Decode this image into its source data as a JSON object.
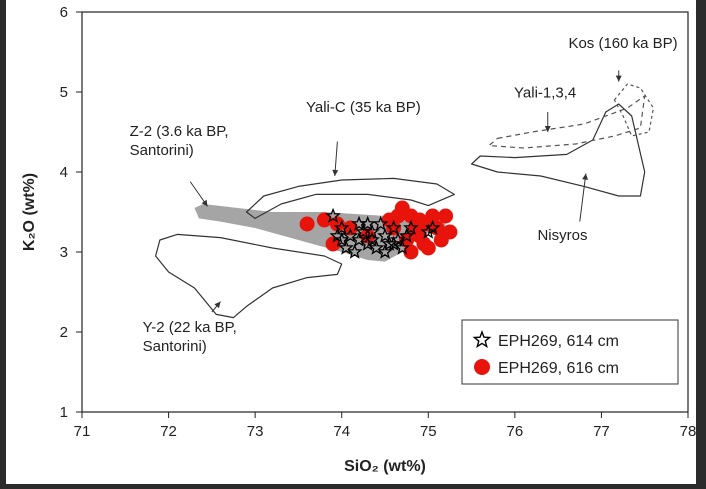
{
  "chart_data": {
    "type": "scatter",
    "xlabel": "SiO₂ (wt%)",
    "ylabel": "K₂O (wt%)",
    "xlim": [
      71,
      78
    ],
    "ylim": [
      1,
      6
    ],
    "xticks": [
      "71",
      "72",
      "73",
      "74",
      "75",
      "76",
      "77",
      "78"
    ],
    "yticks": [
      "1",
      "2",
      "3",
      "4",
      "5",
      "6"
    ],
    "legend_position": "bottom-right",
    "series": [
      {
        "name": "EPH269, 614 cm",
        "marker": "star",
        "color": "#000000",
        "points": [
          [
            73.9,
            3.45
          ],
          [
            74.0,
            3.3
          ],
          [
            74.1,
            3.2
          ],
          [
            74.2,
            3.15
          ],
          [
            74.3,
            3.1
          ],
          [
            74.35,
            3.25
          ],
          [
            74.4,
            3.05
          ],
          [
            74.5,
            3.2
          ],
          [
            74.55,
            3.1
          ],
          [
            74.6,
            3.3
          ],
          [
            74.2,
            3.35
          ],
          [
            74.05,
            3.05
          ],
          [
            74.45,
            3.35
          ],
          [
            74.65,
            3.15
          ],
          [
            74.75,
            3.2
          ],
          [
            74.8,
            3.3
          ],
          [
            74.15,
            3.0
          ],
          [
            74.3,
            3.35
          ],
          [
            74.0,
            3.15
          ],
          [
            74.5,
            3.0
          ],
          [
            74.7,
            3.05
          ],
          [
            74.35,
            3.15
          ],
          [
            75.0,
            3.25
          ],
          [
            75.05,
            3.3
          ],
          [
            74.25,
            3.25
          ],
          [
            73.95,
            3.2
          ],
          [
            74.6,
            3.1
          ]
        ]
      },
      {
        "name": "EPH269, 616 cm",
        "marker": "circle",
        "color": "#e8140c",
        "points": [
          [
            73.6,
            3.35
          ],
          [
            73.8,
            3.4
          ],
          [
            73.95,
            3.35
          ],
          [
            74.7,
            3.55
          ],
          [
            74.8,
            3.45
          ],
          [
            74.9,
            3.4
          ],
          [
            75.0,
            3.35
          ],
          [
            75.1,
            3.3
          ],
          [
            75.2,
            3.45
          ],
          [
            75.25,
            3.25
          ],
          [
            75.15,
            3.15
          ],
          [
            74.9,
            3.2
          ],
          [
            74.95,
            3.1
          ],
          [
            74.85,
            3.3
          ],
          [
            75.05,
            3.45
          ],
          [
            74.6,
            3.3
          ],
          [
            74.75,
            3.15
          ],
          [
            74.55,
            3.4
          ],
          [
            74.65,
            3.45
          ],
          [
            75.0,
            3.05
          ],
          [
            74.8,
            3.0
          ],
          [
            74.1,
            3.3
          ],
          [
            74.3,
            3.2
          ],
          [
            73.9,
            3.1
          ]
        ]
      }
    ],
    "fields": [
      {
        "name": "Z-2",
        "fill": "#a5a5a5",
        "stroke": "none",
        "dash": "",
        "polygon": [
          [
            72.3,
            3.55
          ],
          [
            72.4,
            3.6
          ],
          [
            72.8,
            3.55
          ],
          [
            73.2,
            3.5
          ],
          [
            73.8,
            3.5
          ],
          [
            74.5,
            3.45
          ],
          [
            75.2,
            3.4
          ],
          [
            75.2,
            3.3
          ],
          [
            74.9,
            3.2
          ],
          [
            74.7,
            3.0
          ],
          [
            74.5,
            2.88
          ],
          [
            74.3,
            2.9
          ],
          [
            74.0,
            3.0
          ],
          [
            73.5,
            3.15
          ],
          [
            73.0,
            3.3
          ],
          [
            72.6,
            3.38
          ],
          [
            72.35,
            3.42
          ]
        ]
      },
      {
        "name": "Yali-C",
        "fill": "none",
        "stroke": "#333333",
        "dash": "",
        "polygon": [
          [
            72.9,
            3.5
          ],
          [
            73.1,
            3.7
          ],
          [
            73.5,
            3.82
          ],
          [
            74.0,
            3.9
          ],
          [
            74.6,
            3.92
          ],
          [
            75.1,
            3.85
          ],
          [
            75.3,
            3.72
          ],
          [
            75.0,
            3.58
          ],
          [
            74.8,
            3.65
          ],
          [
            74.3,
            3.72
          ],
          [
            73.7,
            3.72
          ],
          [
            73.3,
            3.6
          ],
          [
            73.0,
            3.42
          ]
        ]
      },
      {
        "name": "Y-2",
        "fill": "none",
        "stroke": "#333333",
        "dash": "",
        "polygon": [
          [
            71.9,
            3.15
          ],
          [
            72.1,
            3.22
          ],
          [
            72.6,
            3.18
          ],
          [
            73.2,
            3.05
          ],
          [
            73.8,
            2.95
          ],
          [
            74.0,
            2.85
          ],
          [
            73.95,
            2.72
          ],
          [
            73.6,
            2.68
          ],
          [
            73.2,
            2.55
          ],
          [
            72.9,
            2.32
          ],
          [
            72.75,
            2.18
          ],
          [
            72.55,
            2.22
          ],
          [
            72.3,
            2.55
          ],
          [
            72.0,
            2.75
          ],
          [
            71.85,
            2.95
          ]
        ]
      },
      {
        "name": "Nisyros",
        "fill": "none",
        "stroke": "#333333",
        "dash": "",
        "polygon": [
          [
            75.5,
            4.1
          ],
          [
            75.8,
            4.0
          ],
          [
            76.3,
            3.95
          ],
          [
            76.8,
            3.82
          ],
          [
            77.2,
            3.7
          ],
          [
            77.45,
            3.7
          ],
          [
            77.5,
            4.0
          ],
          [
            77.35,
            4.7
          ],
          [
            77.2,
            4.85
          ],
          [
            77.05,
            4.75
          ],
          [
            76.9,
            4.4
          ],
          [
            76.6,
            4.22
          ],
          [
            76.0,
            4.18
          ],
          [
            75.6,
            4.2
          ]
        ]
      },
      {
        "name": "Yali-1,3,4",
        "fill": "none",
        "stroke": "#555555",
        "dash": "5,4",
        "polygon": [
          [
            75.8,
            4.42
          ],
          [
            76.2,
            4.5
          ],
          [
            76.8,
            4.6
          ],
          [
            77.3,
            4.8
          ],
          [
            77.5,
            4.95
          ],
          [
            77.45,
            4.55
          ],
          [
            77.15,
            4.45
          ],
          [
            76.7,
            4.35
          ],
          [
            76.1,
            4.3
          ],
          [
            75.7,
            4.33
          ]
        ]
      },
      {
        "name": "Kos",
        "fill": "none",
        "stroke": "#555555",
        "dash": "3,3",
        "polygon": [
          [
            77.15,
            4.9
          ],
          [
            77.3,
            5.1
          ],
          [
            77.45,
            5.05
          ],
          [
            77.6,
            4.8
          ],
          [
            77.55,
            4.5
          ],
          [
            77.35,
            4.45
          ],
          [
            77.25,
            4.7
          ]
        ]
      }
    ],
    "annotations": [
      {
        "lines": [
          "Kos (160 ka BP)"
        ],
        "at": [
          77.25,
          5.55
        ],
        "anchor": "middle",
        "arrow": [
          [
            77.2,
            5.27
          ],
          [
            77.2,
            5.13
          ]
        ]
      },
      {
        "lines": [
          "Yali-1,3,4"
        ],
        "at": [
          76.35,
          4.93
        ],
        "anchor": "middle",
        "arrow": [
          [
            76.38,
            4.75
          ],
          [
            76.38,
            4.5
          ]
        ]
      },
      {
        "lines": [
          "Yali-C (35 ka BP)"
        ],
        "at": [
          74.25,
          4.75
        ],
        "anchor": "middle",
        "arrow": [
          [
            73.95,
            4.38
          ],
          [
            73.92,
            3.95
          ]
        ]
      },
      {
        "lines": [
          "Z-2 (3.6 ka BP,",
          "Santorini)"
        ],
        "at": [
          71.55,
          4.45
        ],
        "anchor": "start",
        "arrow": [
          [
            72.25,
            3.88
          ],
          [
            72.45,
            3.57
          ]
        ]
      },
      {
        "lines": [
          "Y-2 (22 ka BP,",
          "Santorini)"
        ],
        "at": [
          71.7,
          2.0
        ],
        "anchor": "start",
        "arrow": [
          [
            72.5,
            2.25
          ],
          [
            72.6,
            2.38
          ]
        ]
      },
      {
        "lines": [
          "Nisyros"
        ],
        "at": [
          76.55,
          3.15
        ],
        "anchor": "middle",
        "arrow": [
          [
            76.75,
            3.38
          ],
          [
            76.82,
            3.98
          ]
        ]
      }
    ]
  }
}
